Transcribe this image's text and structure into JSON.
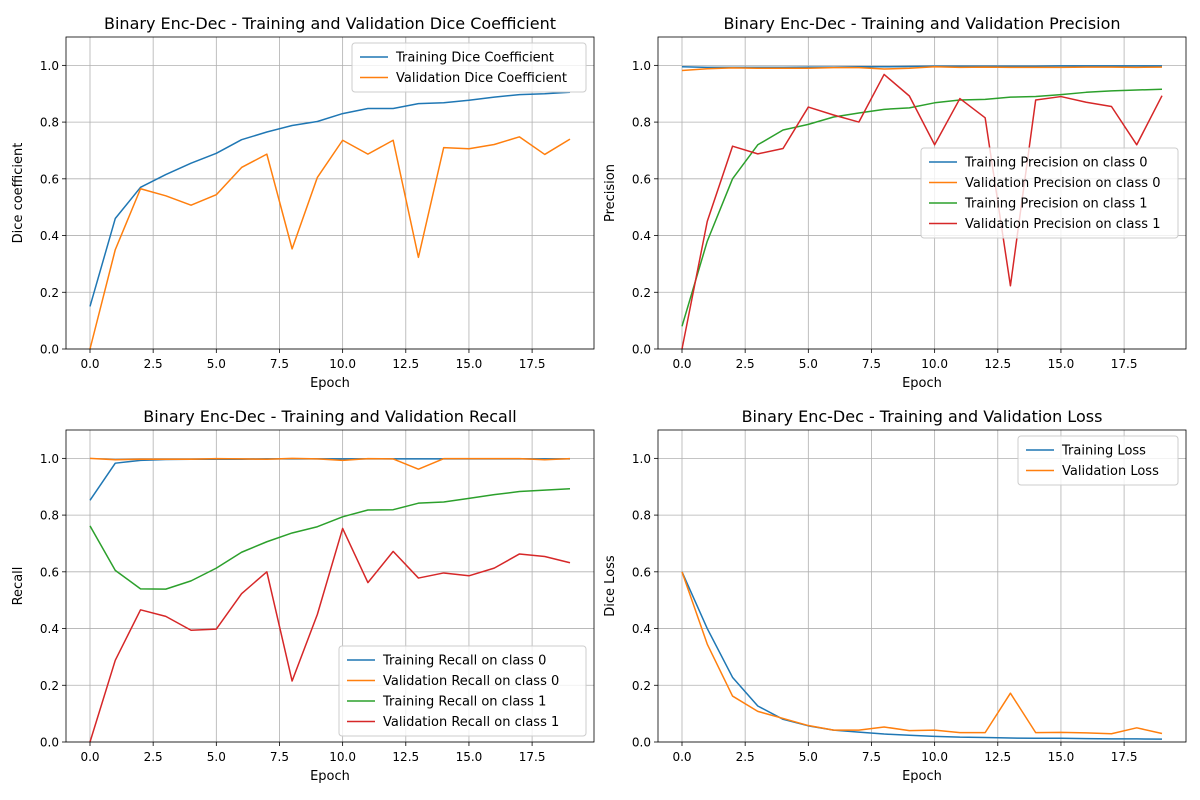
{
  "chart_data": [
    {
      "type": "line",
      "title": "Binary Enc-Dec - Training and Validation Dice Coefficient",
      "xlabel": "Epoch",
      "ylabel": "Dice coefficient",
      "xlim": [
        -0.95,
        19.95
      ],
      "ylim": [
        0,
        1.1
      ],
      "xticks": [
        0,
        2.5,
        5,
        7.5,
        10,
        12.5,
        15,
        17.5
      ],
      "xtick_labels": [
        "0.0",
        "2.5",
        "5.0",
        "7.5",
        "10.0",
        "12.5",
        "15.0",
        "17.5"
      ],
      "yticks": [
        0,
        0.2,
        0.4,
        0.6,
        0.8,
        1.0
      ],
      "ytick_labels": [
        "0.0",
        "0.2",
        "0.4",
        "0.6",
        "0.8",
        "1.0"
      ],
      "grid": true,
      "legend": "upper-right",
      "x": [
        0,
        1,
        2,
        3,
        4,
        5,
        6,
        7,
        8,
        9,
        10,
        11,
        12,
        13,
        14,
        15,
        16,
        17,
        18,
        19
      ],
      "series": [
        {
          "name": "Training Dice Coefficient",
          "color": "#1f77b4",
          "values": [
            0.15,
            0.46,
            0.57,
            0.615,
            0.655,
            0.69,
            0.738,
            0.765,
            0.788,
            0.802,
            0.83,
            0.848,
            0.848,
            0.865,
            0.868,
            0.877,
            0.888,
            0.897,
            0.9,
            0.905
          ]
        },
        {
          "name": "Validation Dice Coefficient",
          "color": "#ff7f0e",
          "values": [
            0.0,
            0.35,
            0.565,
            0.54,
            0.507,
            0.544,
            0.64,
            0.687,
            0.353,
            0.605,
            0.736,
            0.687,
            0.736,
            0.323,
            0.71,
            0.706,
            0.721,
            0.748,
            0.686,
            0.74
          ]
        }
      ]
    },
    {
      "type": "line",
      "title": "Binary Enc-Dec - Training and Validation Precision",
      "xlabel": "Epoch",
      "ylabel": "Precision",
      "xlim": [
        -0.95,
        19.95
      ],
      "ylim": [
        0,
        1.1
      ],
      "xticks": [
        0,
        2.5,
        5,
        7.5,
        10,
        12.5,
        15,
        17.5
      ],
      "xtick_labels": [
        "0.0",
        "2.5",
        "5.0",
        "7.5",
        "10.0",
        "12.5",
        "15.0",
        "17.5"
      ],
      "yticks": [
        0,
        0.2,
        0.4,
        0.6,
        0.8,
        1.0
      ],
      "ytick_labels": [
        "0.0",
        "0.2",
        "0.4",
        "0.6",
        "0.8",
        "1.0"
      ],
      "grid": true,
      "legend": "center-right",
      "x": [
        0,
        1,
        2,
        3,
        4,
        5,
        6,
        7,
        8,
        9,
        10,
        11,
        12,
        13,
        14,
        15,
        16,
        17,
        18,
        19
      ],
      "series": [
        {
          "name": "Training Precision on class 0",
          "color": "#1f77b4",
          "values": [
            0.995,
            0.993,
            0.993,
            0.993,
            0.993,
            0.994,
            0.994,
            0.995,
            0.995,
            0.996,
            0.997,
            0.997,
            0.997,
            0.997,
            0.997,
            0.998,
            0.998,
            0.998,
            0.998,
            0.998
          ]
        },
        {
          "name": "Validation Precision on class 0",
          "color": "#ff7f0e",
          "values": [
            0.982,
            0.988,
            0.991,
            0.99,
            0.99,
            0.99,
            0.992,
            0.992,
            0.987,
            0.99,
            0.995,
            0.993,
            0.994,
            0.993,
            0.993,
            0.993,
            0.994,
            0.994,
            0.993,
            0.994
          ]
        },
        {
          "name": "Training Precision on class 1",
          "color": "#2ca02c",
          "values": [
            0.08,
            0.38,
            0.6,
            0.72,
            0.772,
            0.792,
            0.818,
            0.832,
            0.845,
            0.85,
            0.868,
            0.878,
            0.88,
            0.888,
            0.89,
            0.897,
            0.905,
            0.91,
            0.913,
            0.916
          ]
        },
        {
          "name": "Validation Precision on class 1",
          "color": "#d62728",
          "values": [
            0.0,
            0.45,
            0.715,
            0.688,
            0.707,
            0.853,
            0.825,
            0.8,
            0.968,
            0.892,
            0.72,
            0.883,
            0.815,
            0.223,
            0.878,
            0.89,
            0.87,
            0.855,
            0.72,
            0.893
          ]
        }
      ]
    },
    {
      "type": "line",
      "title": "Binary Enc-Dec - Training and Validation Recall",
      "xlabel": "Epoch",
      "ylabel": "Recall",
      "xlim": [
        -0.95,
        19.95
      ],
      "ylim": [
        0,
        1.1
      ],
      "xticks": [
        0,
        2.5,
        5,
        7.5,
        10,
        12.5,
        15,
        17.5
      ],
      "xtick_labels": [
        "0.0",
        "2.5",
        "5.0",
        "7.5",
        "10.0",
        "12.5",
        "15.0",
        "17.5"
      ],
      "yticks": [
        0,
        0.2,
        0.4,
        0.6,
        0.8,
        1.0
      ],
      "ytick_labels": [
        "0.0",
        "0.2",
        "0.4",
        "0.6",
        "0.8",
        "1.0"
      ],
      "grid": true,
      "legend": "lower-right",
      "x": [
        0,
        1,
        2,
        3,
        4,
        5,
        6,
        7,
        8,
        9,
        10,
        11,
        12,
        13,
        14,
        15,
        16,
        17,
        18,
        19
      ],
      "series": [
        {
          "name": "Training Recall on class 0",
          "color": "#1f77b4",
          "values": [
            0.852,
            0.983,
            0.993,
            0.996,
            0.997,
            0.997,
            0.997,
            0.998,
            0.998,
            0.998,
            0.998,
            0.998,
            0.998,
            0.998,
            0.998,
            0.998,
            0.998,
            0.998,
            0.998,
            0.998
          ]
        },
        {
          "name": "Validation Recall on class 0",
          "color": "#ff7f0e",
          "values": [
            1.0,
            0.995,
            0.997,
            0.997,
            0.997,
            0.999,
            0.998,
            0.997,
            1.0,
            0.998,
            0.993,
            0.999,
            0.998,
            0.962,
            0.999,
            0.999,
            0.999,
            0.999,
            0.995,
            0.999
          ]
        },
        {
          "name": "Training Recall on class 1",
          "color": "#2ca02c",
          "values": [
            0.762,
            0.605,
            0.54,
            0.539,
            0.568,
            0.613,
            0.669,
            0.706,
            0.737,
            0.759,
            0.794,
            0.818,
            0.819,
            0.842,
            0.846,
            0.859,
            0.872,
            0.883,
            0.888,
            0.893
          ]
        },
        {
          "name": "Validation Recall on class 1",
          "color": "#d62728",
          "values": [
            0.0,
            0.288,
            0.466,
            0.443,
            0.394,
            0.398,
            0.523,
            0.6,
            0.215,
            0.45,
            0.753,
            0.562,
            0.672,
            0.578,
            0.596,
            0.586,
            0.613,
            0.663,
            0.654,
            0.632
          ]
        }
      ]
    },
    {
      "type": "line",
      "title": "Binary Enc-Dec - Training and Validation Loss",
      "xlabel": "Epoch",
      "ylabel": "Dice Loss",
      "xlim": [
        -0.95,
        19.95
      ],
      "ylim": [
        0,
        1.1
      ],
      "xticks": [
        0,
        2.5,
        5,
        7.5,
        10,
        12.5,
        15,
        17.5
      ],
      "xtick_labels": [
        "0.0",
        "2.5",
        "5.0",
        "7.5",
        "10.0",
        "12.5",
        "15.0",
        "17.5"
      ],
      "yticks": [
        0,
        0.2,
        0.4,
        0.6,
        0.8,
        1.0
      ],
      "ytick_labels": [
        "0.0",
        "0.2",
        "0.4",
        "0.6",
        "0.8",
        "1.0"
      ],
      "grid": true,
      "legend": "upper-right",
      "x": [
        0,
        1,
        2,
        3,
        4,
        5,
        6,
        7,
        8,
        9,
        10,
        11,
        12,
        13,
        14,
        15,
        16,
        17,
        18,
        19
      ],
      "series": [
        {
          "name": "Training Loss",
          "color": "#1f77b4",
          "values": [
            0.6,
            0.4,
            0.228,
            0.127,
            0.08,
            0.057,
            0.042,
            0.035,
            0.028,
            0.024,
            0.02,
            0.017,
            0.016,
            0.014,
            0.013,
            0.013,
            0.012,
            0.011,
            0.011,
            0.01
          ]
        },
        {
          "name": "Validation Loss",
          "color": "#ff7f0e",
          "values": [
            0.6,
            0.345,
            0.162,
            0.108,
            0.083,
            0.058,
            0.042,
            0.042,
            0.053,
            0.04,
            0.042,
            0.033,
            0.033,
            0.172,
            0.033,
            0.034,
            0.032,
            0.029,
            0.05,
            0.03
          ]
        }
      ]
    }
  ]
}
